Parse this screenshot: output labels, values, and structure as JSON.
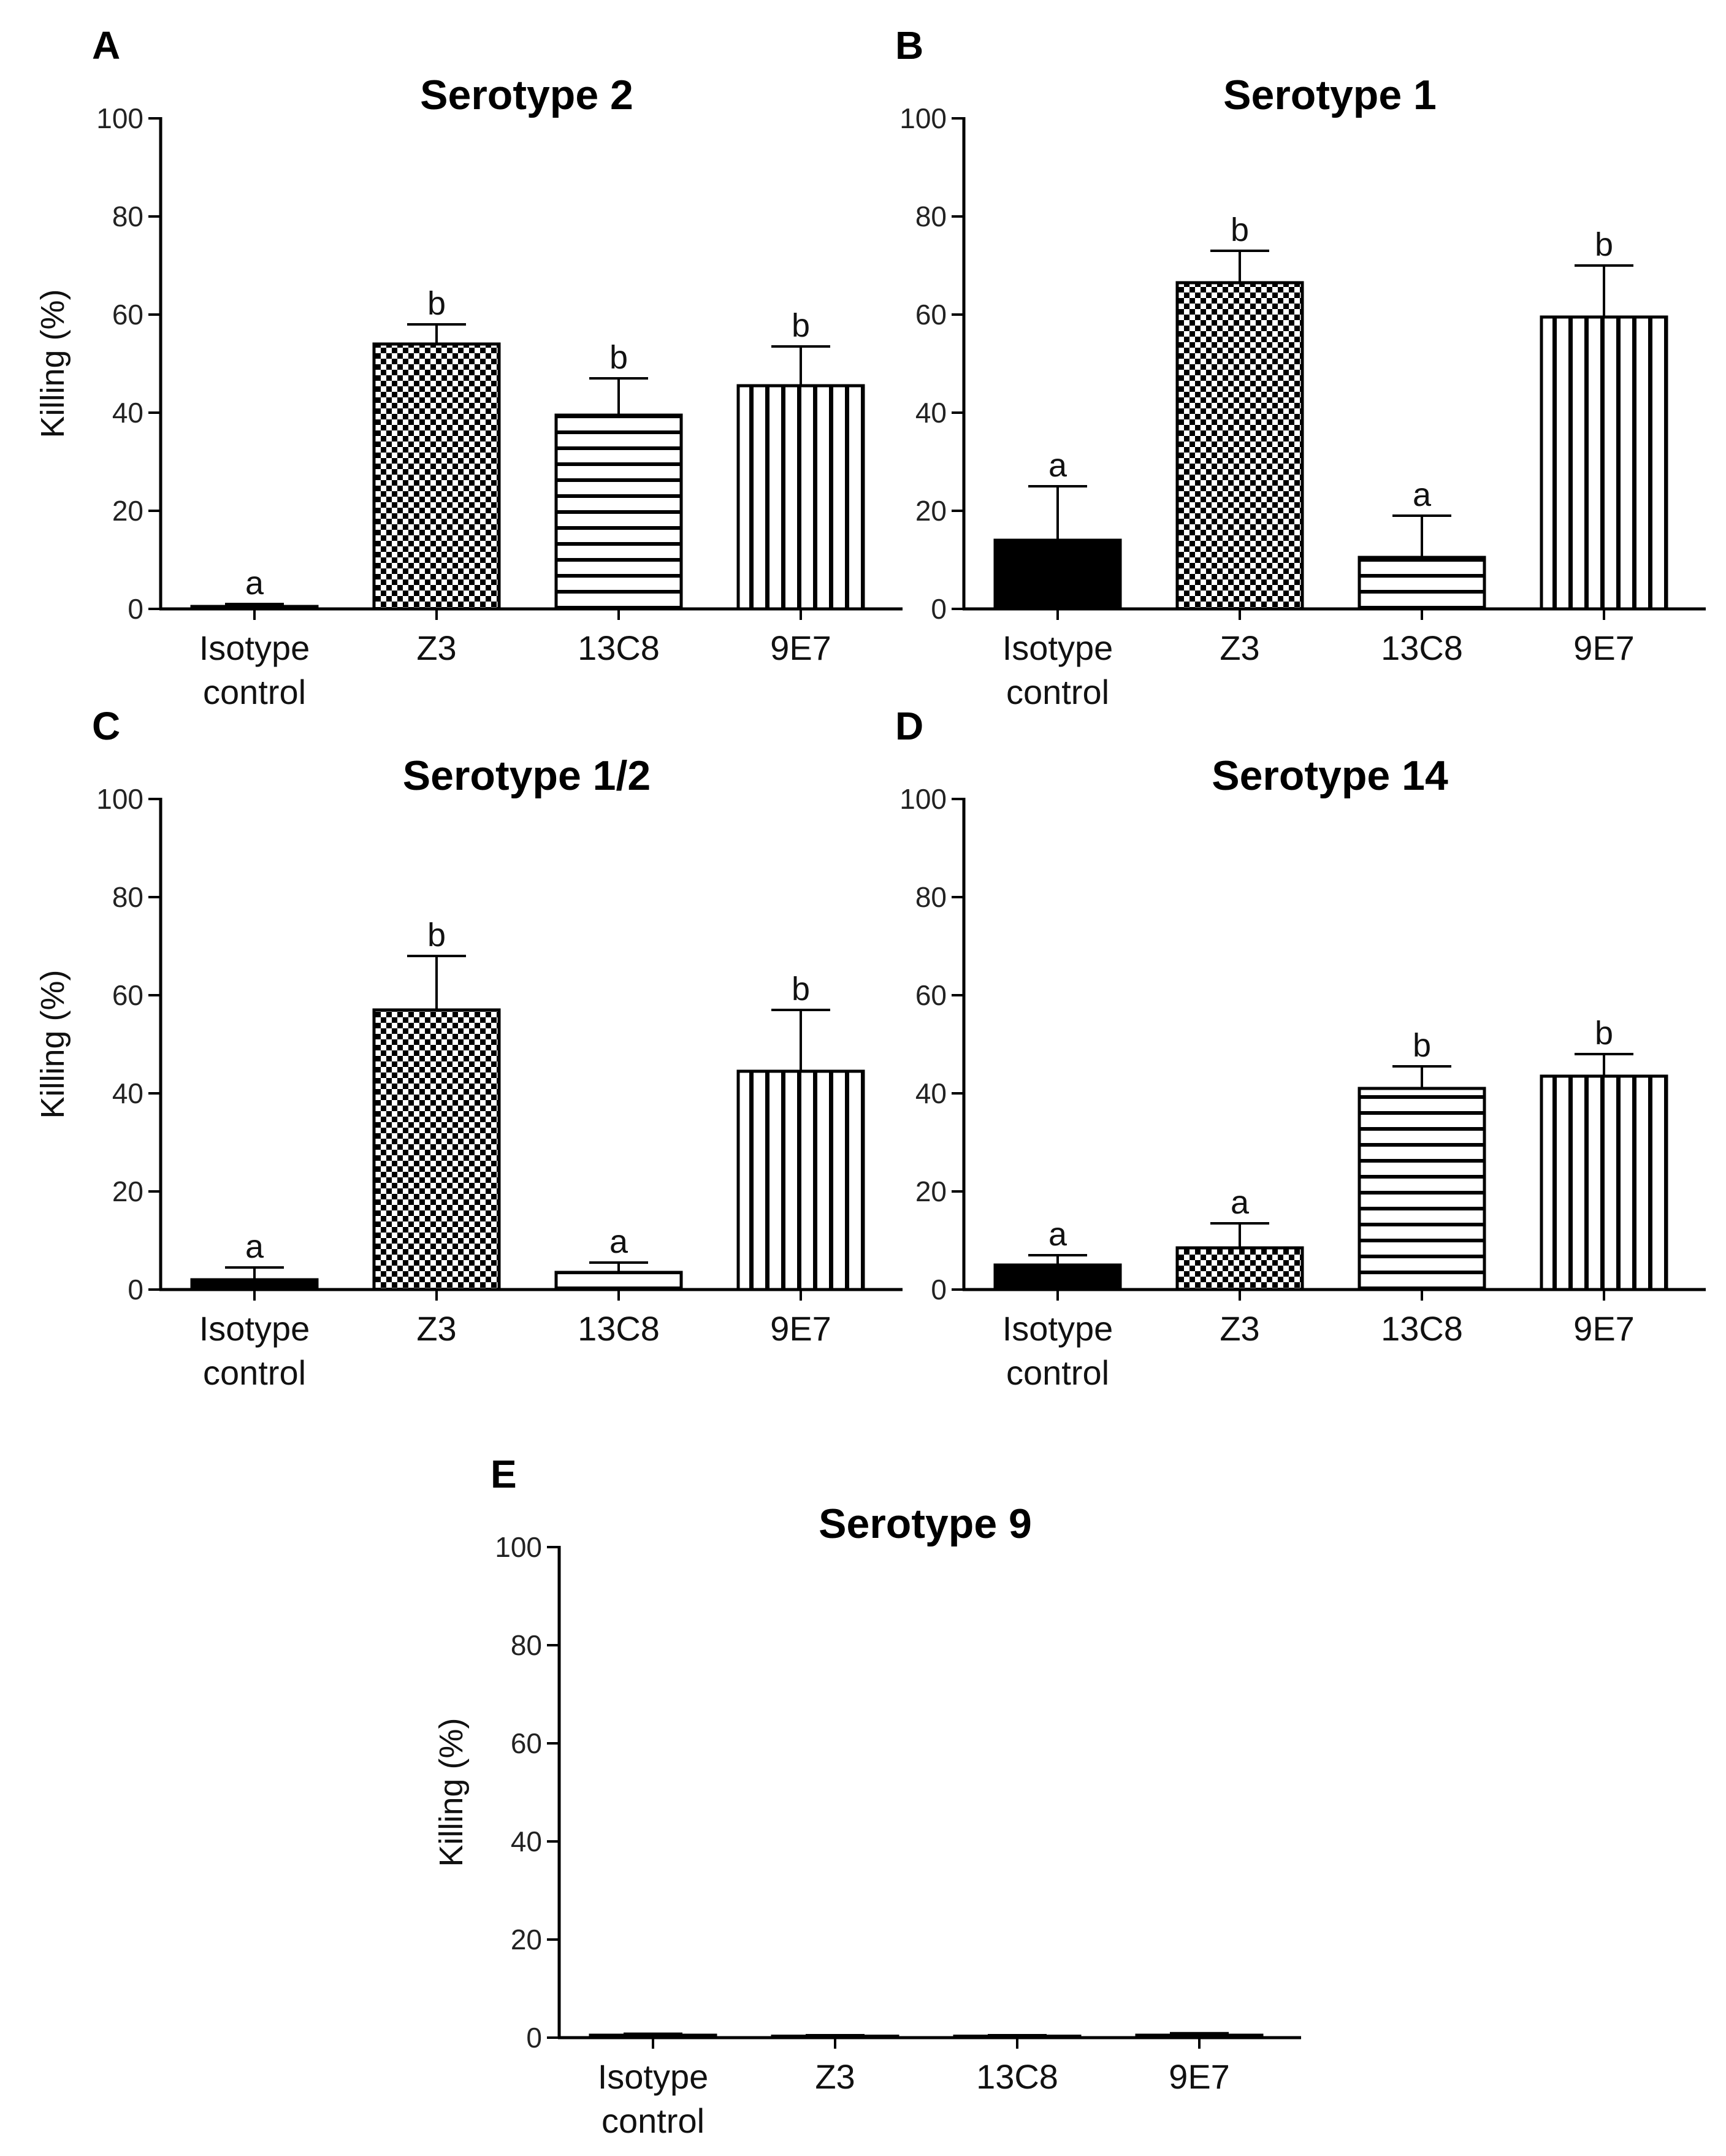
{
  "chart_data": [
    {
      "type": "bar",
      "panel": "A",
      "title": "Serotype 2",
      "ylabel": "Killing (%)",
      "ylim": [
        0,
        100
      ],
      "yticks": [
        "0",
        "20",
        "40",
        "60",
        "80",
        "100"
      ],
      "categories": [
        "Isotype control",
        "Z3",
        "13C8",
        "9E7"
      ],
      "values": [
        0.5,
        54,
        39.5,
        45.5
      ],
      "errors": [
        0.5,
        4,
        7.5,
        8
      ],
      "significance": [
        "a",
        "b",
        "b",
        "b"
      ]
    },
    {
      "type": "bar",
      "panel": "B",
      "title": "Serotype 1",
      "ylabel": "",
      "ylim": [
        0,
        100
      ],
      "yticks": [
        "0",
        "20",
        "40",
        "60",
        "80",
        "100"
      ],
      "categories": [
        "Isotype control",
        "Z3",
        "13C8",
        "9E7"
      ],
      "values": [
        14,
        66.5,
        10.5,
        59.5
      ],
      "errors": [
        11,
        6.5,
        8.5,
        10.5
      ],
      "significance": [
        "a",
        "b",
        "a",
        "b"
      ]
    },
    {
      "type": "bar",
      "panel": "C",
      "title": "Serotype 1/2",
      "ylabel": "Killing (%)",
      "ylim": [
        0,
        100
      ],
      "yticks": [
        "0",
        "20",
        "40",
        "60",
        "80",
        "100"
      ],
      "categories": [
        "Isotype control",
        "Z3",
        "13C8",
        "9E7"
      ],
      "values": [
        2,
        57,
        3.5,
        44.5
      ],
      "errors": [
        2.5,
        11,
        2,
        12.5
      ],
      "significance": [
        "a",
        "b",
        "a",
        "b"
      ]
    },
    {
      "type": "bar",
      "panel": "D",
      "title": "Serotype 14",
      "ylabel": "",
      "ylim": [
        0,
        100
      ],
      "yticks": [
        "0",
        "20",
        "40",
        "60",
        "80",
        "100"
      ],
      "categories": [
        "Isotype control",
        "Z3",
        "13C8",
        "9E7"
      ],
      "values": [
        5,
        8.5,
        41,
        43.5
      ],
      "errors": [
        2,
        5,
        4.5,
        4.5
      ],
      "significance": [
        "a",
        "a",
        "b",
        "b"
      ]
    },
    {
      "type": "bar",
      "panel": "E",
      "title": "Serotype 9",
      "ylabel": "Killing (%)",
      "ylim": [
        0,
        100
      ],
      "yticks": [
        "0",
        "20",
        "40",
        "60",
        "80",
        "100"
      ],
      "categories": [
        "Isotype control",
        "Z3",
        "13C8",
        "9E7"
      ],
      "values": [
        0.5,
        0.3,
        0.3,
        0.5
      ],
      "errors": [
        0.3,
        0.2,
        0.2,
        0.4
      ],
      "significance": [
        "",
        "",
        "",
        ""
      ]
    }
  ],
  "bar_patterns": [
    "solid",
    "checker",
    "horizontal",
    "vertical"
  ]
}
